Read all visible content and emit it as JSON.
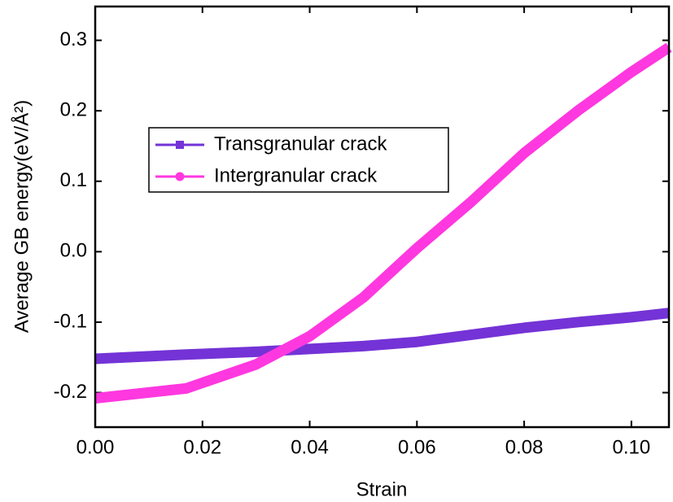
{
  "chart_data": {
    "type": "line",
    "x_label": "Strain",
    "y_label": "Average GB energy(eV/Å²)",
    "x": [
      0,
      0.017,
      0.03,
      0.04,
      0.05,
      0.06,
      0.07,
      0.08,
      0.09,
      0.1,
      0.107
    ],
    "series": [
      {
        "name": "Transgranular crack",
        "color": "#7433d6",
        "marker": "square",
        "values": [
          -0.152,
          -0.146,
          -0.142,
          -0.138,
          -0.134,
          -0.128,
          -0.118,
          -0.108,
          -0.1,
          -0.093,
          -0.087
        ]
      },
      {
        "name": "Intergranular crack",
        "color": "#ff38e0",
        "marker": "circle",
        "values": [
          -0.208,
          -0.194,
          -0.16,
          -0.12,
          -0.065,
          0.005,
          0.07,
          0.14,
          0.2,
          0.255,
          0.29
        ]
      }
    ],
    "xlim": [
      0,
      0.107
    ],
    "ylim": [
      -0.249,
      0.348
    ],
    "xticks": [
      {
        "value": 0,
        "label": "0.00"
      },
      {
        "value": 0.02,
        "label": "0.02"
      },
      {
        "value": 0.04,
        "label": "0.04"
      },
      {
        "value": 0.06,
        "label": "0.06"
      },
      {
        "value": 0.08,
        "label": "0.08"
      },
      {
        "value": 0.1,
        "label": "0.10"
      }
    ],
    "yticks": [
      -0.2,
      -0.1,
      {
        "value": 0,
        "label": "0.0"
      },
      0.1,
      0.2,
      0.3
    ],
    "legend": "upper-left",
    "grid": false
  }
}
